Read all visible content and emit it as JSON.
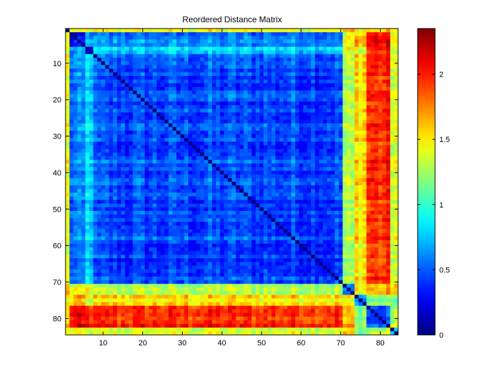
{
  "chart_data": {
    "type": "heatmap",
    "title": "Reordered Distance Matrix",
    "n": 84,
    "x_ticks": [
      10,
      20,
      30,
      40,
      50,
      60,
      70,
      80
    ],
    "y_ticks": [
      10,
      20,
      30,
      40,
      50,
      60,
      70,
      80
    ],
    "colorbar": {
      "range": [
        0,
        2.35
      ],
      "ticks": [
        0,
        0.5,
        1,
        1.5,
        2
      ],
      "tick_labels": [
        "0",
        "0.5",
        "1",
        "1.5",
        "2"
      ],
      "colormap": "jet"
    },
    "clusters": [
      {
        "rows": [
          1,
          1
        ]
      },
      {
        "rows": [
          2,
          5
        ]
      },
      {
        "rows": [
          6,
          7
        ]
      },
      {
        "rows": [
          8,
          70
        ]
      },
      {
        "rows": [
          71,
          73
        ]
      },
      {
        "rows": [
          74,
          76
        ]
      },
      {
        "rows": [
          77,
          82
        ]
      },
      {
        "rows": [
          83,
          84
        ]
      }
    ],
    "block_mean_distances": [
      [
        0.0,
        1.35,
        1.4,
        1.4,
        1.6,
        1.5,
        1.55,
        1.4
      ],
      [
        1.35,
        0.2,
        0.65,
        0.55,
        1.35,
        1.6,
        2.0,
        1.5
      ],
      [
        1.4,
        0.65,
        0.3,
        0.8,
        1.4,
        1.4,
        2.0,
        1.4
      ],
      [
        1.4,
        0.55,
        0.8,
        0.45,
        1.25,
        1.55,
        1.95,
        1.4
      ],
      [
        1.6,
        1.35,
        1.4,
        1.25,
        0.5,
        1.4,
        1.6,
        1.6
      ],
      [
        1.5,
        1.6,
        1.4,
        1.55,
        1.4,
        0.6,
        1.2,
        1.2
      ],
      [
        1.55,
        2.0,
        2.0,
        1.95,
        1.6,
        1.2,
        0.45,
        1.3
      ],
      [
        1.4,
        1.5,
        1.4,
        1.4,
        1.6,
        1.2,
        1.3,
        0.8
      ]
    ]
  }
}
